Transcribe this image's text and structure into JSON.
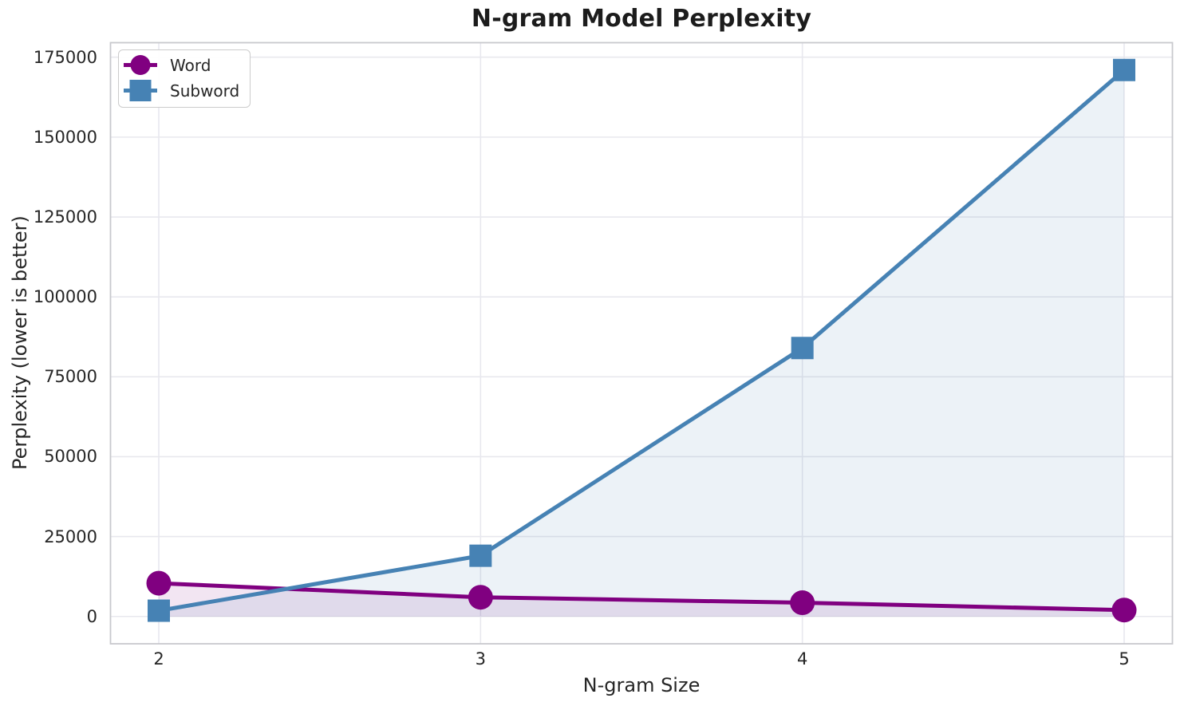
{
  "chart_data": {
    "type": "line",
    "title": "N-gram Model Perplexity",
    "xlabel": "N-gram Size",
    "ylabel": "Perplexity (lower is better)",
    "x": [
      2,
      3,
      4,
      5
    ],
    "xtick_labels": [
      "2",
      "3",
      "4",
      "5"
    ],
    "yticks": [
      0,
      25000,
      50000,
      75000,
      100000,
      125000,
      150000,
      175000
    ],
    "xlim": [
      1.85,
      5.15
    ],
    "ylim": [
      -8550,
      179550
    ],
    "grid": true,
    "legend_position": "upper left",
    "fill_alpha": 0.1,
    "series": [
      {
        "name": "Word",
        "marker": "circle",
        "color": "#800080",
        "values": [
          10400,
          6000,
          4300,
          2000
        ]
      },
      {
        "name": "Subword",
        "marker": "square",
        "color": "#4682B4",
        "values": [
          1800,
          19000,
          84000,
          171000
        ]
      }
    ],
    "theme": {
      "background": "#ffffff",
      "grid_color": "#e8e8ee",
      "spine_color": "#c8c9cd",
      "text_color": "#262626",
      "title_color": "#1c1c1c"
    }
  }
}
